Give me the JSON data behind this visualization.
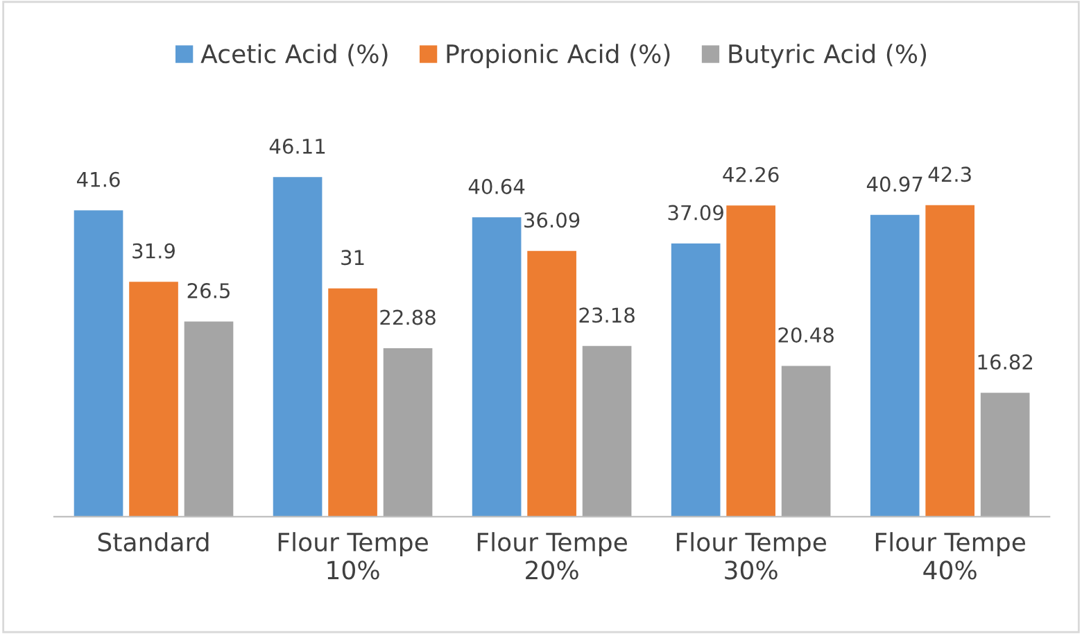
{
  "chart_data": {
    "type": "bar",
    "categories": [
      "Standard",
      "Flour Tempe\n10%",
      "Flour Tempe\n20%",
      "Flour Tempe\n30%",
      "Flour Tempe\n40%"
    ],
    "series": [
      {
        "name": "Acetic Acid (%)",
        "color": "#5b9bd5",
        "values": [
          41.6,
          46.11,
          40.64,
          37.09,
          40.97
        ]
      },
      {
        "name": "Propionic Acid (%)",
        "color": "#ed7d31",
        "values": [
          31.9,
          31,
          36.09,
          42.26,
          42.3
        ]
      },
      {
        "name": "Butyric Acid (%)",
        "color": "#a5a5a5",
        "values": [
          26.5,
          22.88,
          23.18,
          20.48,
          16.82
        ]
      }
    ],
    "tick_labels": "x",
    "data_labels": true,
    "legend": "top",
    "grid": false
  }
}
